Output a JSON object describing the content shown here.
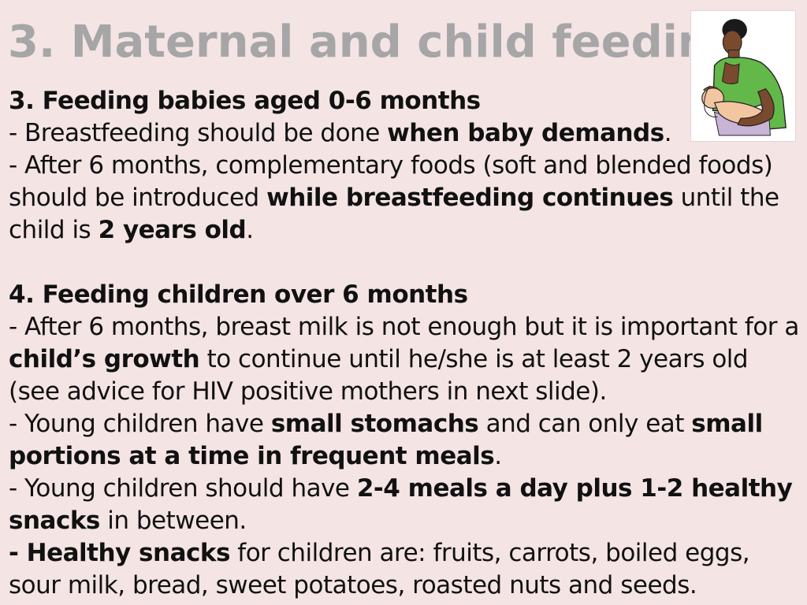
{
  "slide": {
    "title": "3. Maternal and child feeding"
  },
  "section3": {
    "heading": "3. Feeding babies aged 0-6 months",
    "line1_pre": "- Breastfeeding should be done ",
    "line1_bold": "when baby demands",
    "line1_post": ".",
    "line2_pre": "- After 6 months, complementary foods (soft and blended foods) should be introduced ",
    "line2_bold": "while breastfeeding continues",
    "line2_mid": " until the child is ",
    "line2_bold2": "2 years old",
    "line2_post": "."
  },
  "section4": {
    "heading": "4. Feeding children over 6 months",
    "line1_pre": "- After 6 months, breast milk is not enough but it is important for a ",
    "line1_bold": "child’s growth",
    "line1_post": " to continue until he/she is at least 2 years old (see advice for HIV positive mothers in next slide).",
    "line2_pre": "- Young children have ",
    "line2_bold": "small stomachs",
    "line2_mid": " and can only eat ",
    "line2_bold2": "small portions at a time in frequent meals",
    "line2_post": ".",
    "line3_pre": "- Young children should have ",
    "line3_bold": "2-4 meals a day plus 1-2 healthy snacks",
    "line3_post": " in between.",
    "line4_bold": "- Healthy snacks",
    "line4_post": " for children are: fruits, carrots, boiled eggs, sour milk, bread, sweet potatoes, roasted nuts and seeds."
  },
  "illustration": {
    "icon": "mother-breastfeeding-icon",
    "colors": {
      "shirt": "#63b84a",
      "skin": "#7a4a2e",
      "baby": "#f2c6a0",
      "wrap": "#c9b3d6"
    }
  }
}
